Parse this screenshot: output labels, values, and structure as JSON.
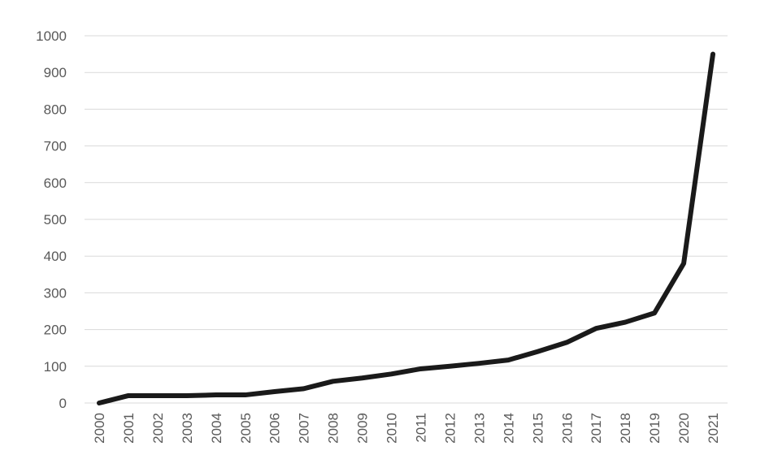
{
  "chart_data": {
    "type": "line",
    "title": "",
    "xlabel": "",
    "ylabel": "",
    "ylim": [
      0,
      1000
    ],
    "yticks": [
      0,
      100,
      200,
      300,
      400,
      500,
      600,
      700,
      800,
      900,
      1000
    ],
    "grid": true,
    "legend": "none",
    "line_color": "#1a1a1a",
    "categories": [
      "2000",
      "2001",
      "2002",
      "2003",
      "2004",
      "2005",
      "2006",
      "2007",
      "2008",
      "2009",
      "2010",
      "2011",
      "2012",
      "2013",
      "2014",
      "2015",
      "2016",
      "2017",
      "2018",
      "2019",
      "2020",
      "2021"
    ],
    "series": [
      {
        "values": [
          0,
          20,
          20,
          20,
          22,
          22,
          31,
          39,
          59,
          68,
          79,
          93,
          100,
          108,
          117,
          140,
          165,
          203,
          220,
          245,
          380,
          950
        ]
      }
    ]
  }
}
